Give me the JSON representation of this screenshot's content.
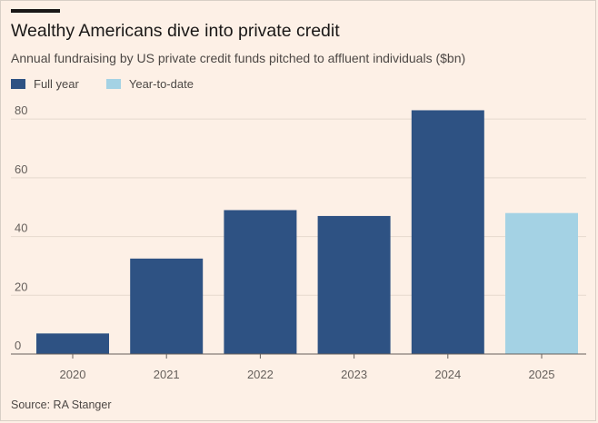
{
  "chart_data": {
    "type": "bar",
    "title": "Wealthy Americans dive into private credit",
    "subtitle": "Annual fundraising by US private credit funds pitched to affluent individuals ($bn)",
    "categories": [
      "2020",
      "2021",
      "2022",
      "2023",
      "2024",
      "2025"
    ],
    "values": [
      7,
      32.5,
      49,
      47,
      83,
      48
    ],
    "bar_kinds": [
      "full",
      "full",
      "full",
      "full",
      "full",
      "ytd"
    ],
    "legend": [
      {
        "key": "full",
        "label": "Full year",
        "color": "#2e5283"
      },
      {
        "key": "ytd",
        "label": "Year-to-date",
        "color": "#a4d2e4"
      }
    ],
    "legend_position": "top-left",
    "ylim": [
      0,
      85
    ],
    "yticks": [
      0,
      20,
      40,
      60,
      80
    ],
    "grid": true,
    "xlabel": "",
    "ylabel": "",
    "source": "Source: RA Stanger"
  }
}
